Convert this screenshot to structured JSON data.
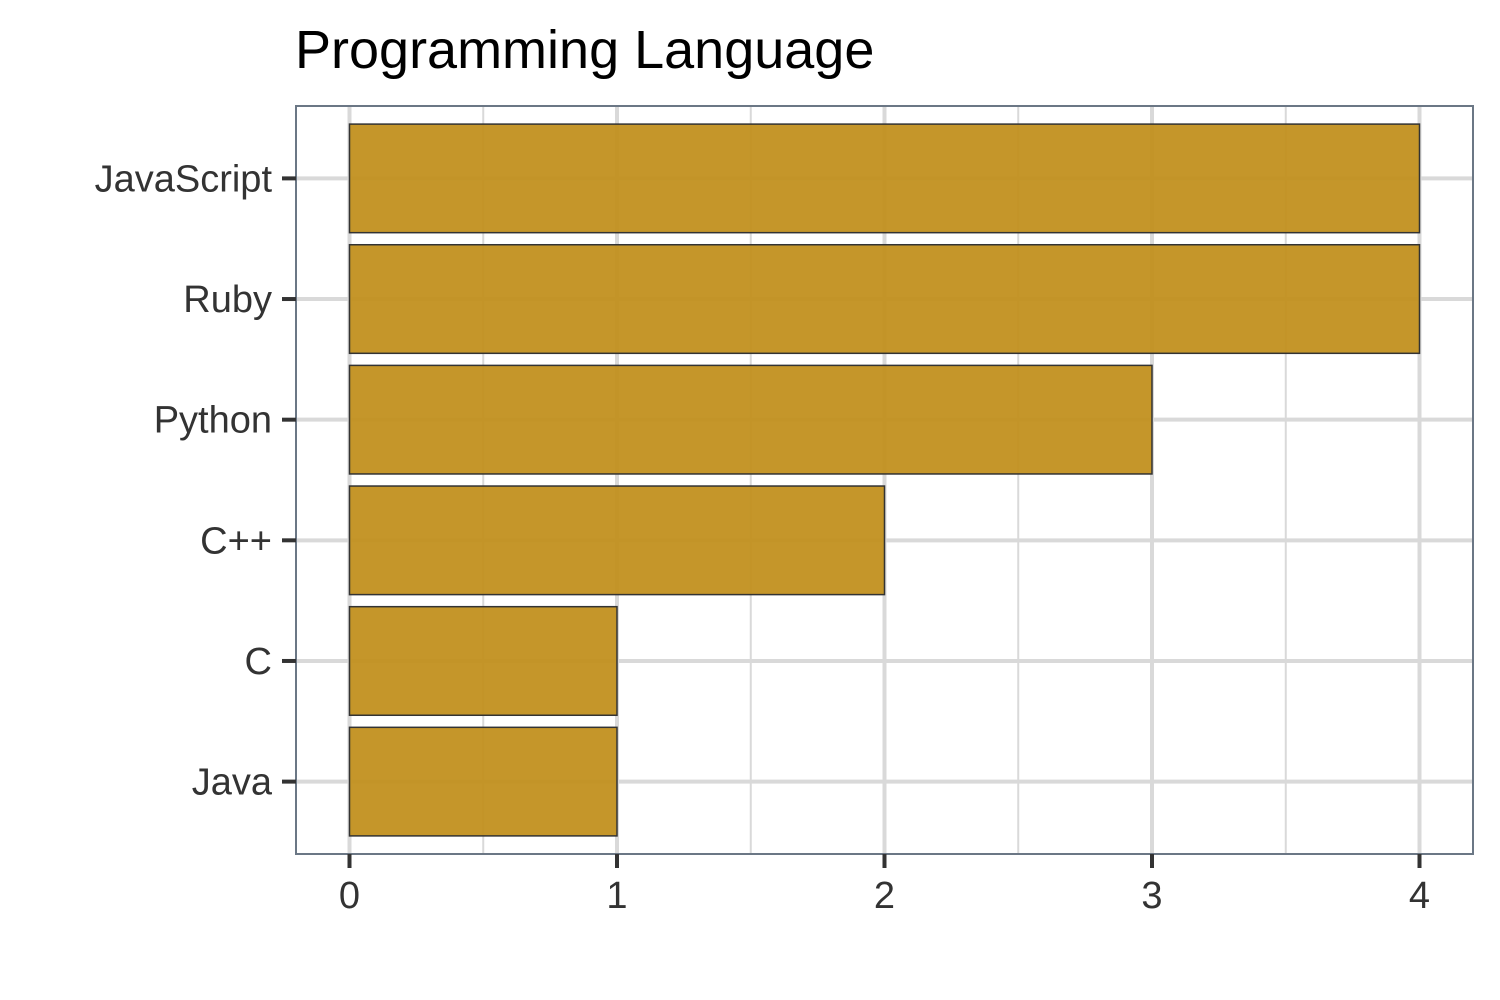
{
  "chart_data": {
    "type": "bar",
    "orientation": "horizontal",
    "title": "Programming Language",
    "xlabel": "",
    "ylabel": "",
    "categories": [
      "JavaScript",
      "Ruby",
      "Python",
      "C++",
      "C",
      "Java"
    ],
    "values": [
      4,
      4,
      3,
      2,
      1,
      1
    ],
    "xlim": [
      -0.2,
      4.2
    ],
    "x_ticks": [
      0,
      1,
      2,
      3,
      4
    ],
    "grid": true,
    "legend": "none",
    "colors": {
      "bar_fill": "#C2901F",
      "bar_stroke": "#333333",
      "grid": "#D9D9D9",
      "panel_border": "#6B7785",
      "tick": "#333333"
    }
  }
}
